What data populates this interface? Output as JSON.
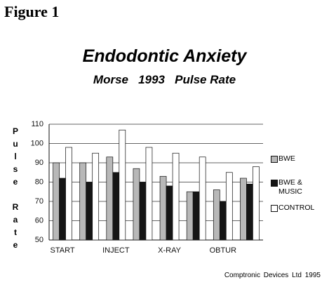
{
  "figure_label": "Figure 1",
  "chart_data": {
    "type": "bar",
    "title": "Endodontic Anxiety",
    "subtitle": "Morse   1993   Pulse Rate",
    "y_label": "Pulse Rate",
    "categories": [
      "START",
      null,
      "INJECT",
      null,
      "X-RAY",
      null,
      "OBTUR",
      null
    ],
    "series": [
      {
        "name": "BWE",
        "color": "#b8b8b8",
        "values": [
          90,
          90,
          93,
          87,
          83,
          75,
          76,
          82
        ]
      },
      {
        "name": "BWE & MUSIC",
        "color": "#151515",
        "values": [
          82,
          80,
          85,
          80,
          78,
          75,
          70,
          79
        ]
      },
      {
        "name": "CONTROL",
        "color": "#ffffff",
        "values": [
          98,
          95,
          107,
          98,
          95,
          93,
          85,
          88
        ]
      }
    ],
    "ylim": [
      50,
      110
    ],
    "yticks": [
      50,
      60,
      70,
      80,
      90,
      100,
      110
    ],
    "grid": true,
    "legend": "right"
  },
  "footer": "Comptronic Devices Ltd  1995"
}
